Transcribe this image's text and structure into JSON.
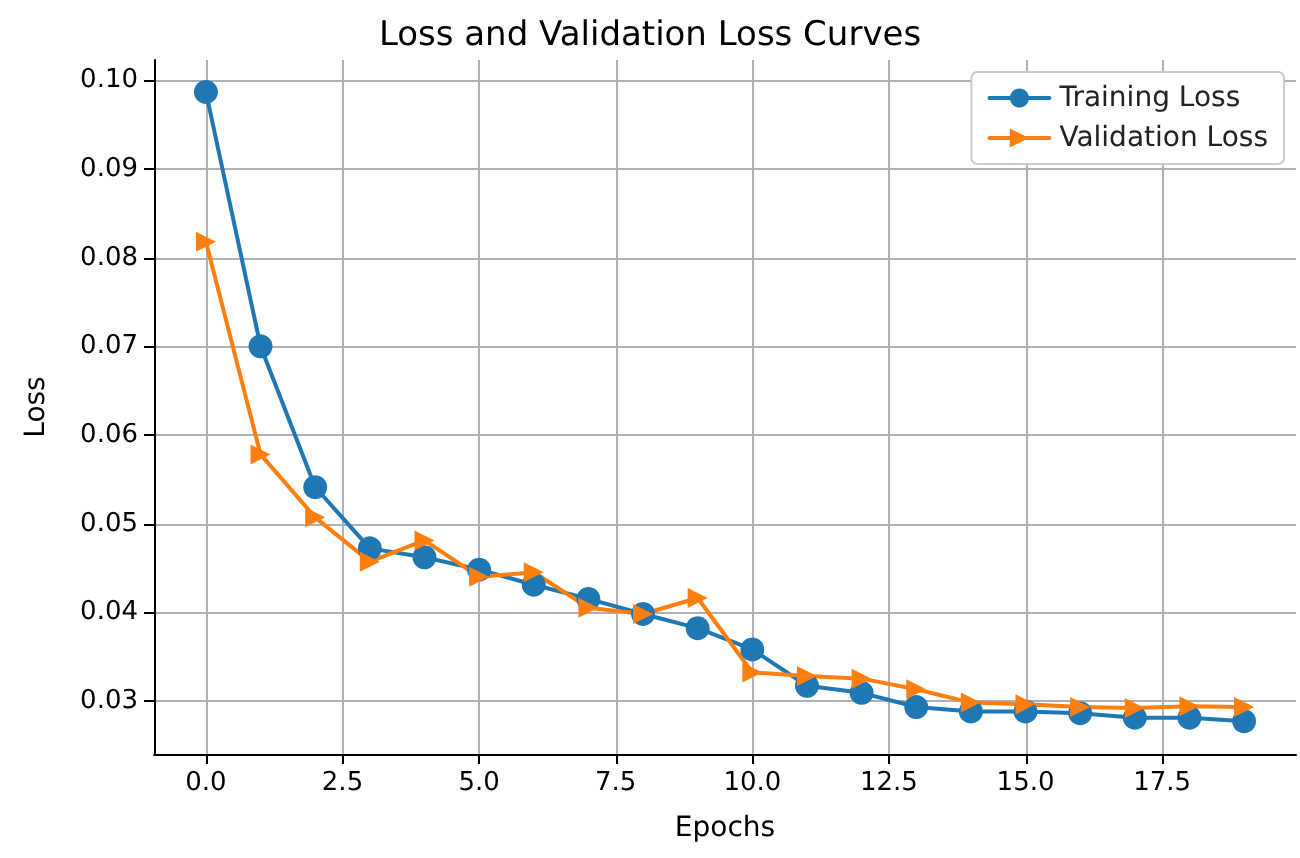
{
  "chart_data": {
    "type": "line",
    "title": "Loss and Validation Loss Curves",
    "xlabel": "Epochs",
    "ylabel": "Loss",
    "x": [
      0,
      1,
      2,
      3,
      4,
      5,
      6,
      7,
      8,
      9,
      10,
      11,
      12,
      13,
      14,
      15,
      16,
      17,
      18,
      19
    ],
    "series": [
      {
        "name": "Training Loss",
        "color": "#1f77b4",
        "marker": "circle",
        "values": [
          0.0987,
          0.07,
          0.0541,
          0.0472,
          0.0462,
          0.0448,
          0.0431,
          0.0415,
          0.0398,
          0.0382,
          0.0358,
          0.0317,
          0.0309,
          0.0293,
          0.0288,
          0.0288,
          0.0286,
          0.0281,
          0.0281,
          0.0277
        ]
      },
      {
        "name": "Validation Loss",
        "color": "#ff7f0e",
        "marker": "triangle",
        "values": [
          0.0818,
          0.0578,
          0.0507,
          0.0457,
          0.0481,
          0.044,
          0.0445,
          0.0405,
          0.0398,
          0.0416,
          0.0332,
          0.0328,
          0.0325,
          0.0313,
          0.0298,
          0.0296,
          0.0293,
          0.0292,
          0.0294,
          0.0293
        ]
      }
    ],
    "xlim": [
      -0.95,
      19.95
    ],
    "ylim": [
      0.024,
      0.1023
    ],
    "xticks": [
      {
        "value": 0,
        "label": "0.0"
      },
      {
        "value": 2.5,
        "label": "2.5"
      },
      {
        "value": 5,
        "label": "5.0"
      },
      {
        "value": 7.5,
        "label": "7.5"
      },
      {
        "value": 10,
        "label": "10.0"
      },
      {
        "value": 12.5,
        "label": "12.5"
      },
      {
        "value": 15,
        "label": "15.0"
      },
      {
        "value": 17.5,
        "label": "17.5"
      }
    ],
    "yticks": [
      {
        "value": 0.03,
        "label": "0.03"
      },
      {
        "value": 0.04,
        "label": "0.04"
      },
      {
        "value": 0.05,
        "label": "0.05"
      },
      {
        "value": 0.06,
        "label": "0.06"
      },
      {
        "value": 0.07,
        "label": "0.07"
      },
      {
        "value": 0.08,
        "label": "0.08"
      },
      {
        "value": 0.09,
        "label": "0.09"
      },
      {
        "value": 0.1,
        "label": "0.10"
      }
    ],
    "grid": true,
    "legend": "top right",
    "line_style": "solid"
  }
}
